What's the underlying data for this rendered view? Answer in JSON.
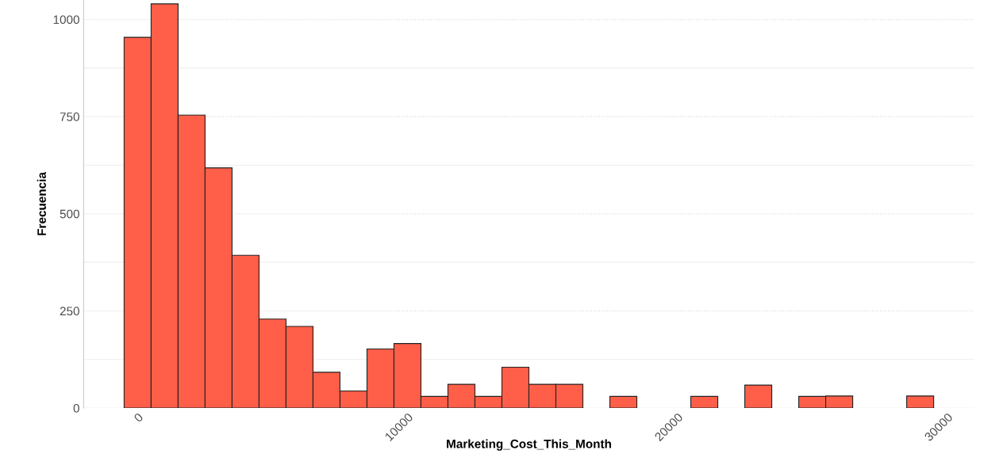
{
  "chart_data": {
    "type": "histogram",
    "xlabel": "Marketing_Cost_This_Month",
    "ylabel": "Frecuencia",
    "bins": [
      -500,
      500,
      1500,
      2500,
      3500,
      4500,
      5500,
      6500,
      7500,
      8500,
      9500,
      10500,
      11500,
      12500,
      13500,
      14500,
      15500,
      16500,
      17500,
      18500,
      19500,
      20500,
      21500,
      22500,
      23500,
      24500,
      25500,
      26500,
      27500,
      28500,
      29500
    ],
    "values": [
      954,
      1040,
      754,
      618,
      393,
      229,
      210,
      92,
      44,
      152,
      166,
      30,
      61,
      30,
      105,
      61,
      61,
      0,
      30,
      0,
      0,
      30,
      0,
      59,
      0,
      30,
      31,
      0,
      0,
      31
    ],
    "color": "#ff5f49",
    "xlim": [
      -2000,
      31000
    ],
    "xticks": [
      0,
      10000,
      20000,
      30000
    ],
    "ylim": [
      0,
      1050
    ],
    "yticks": [
      0,
      250,
      500,
      750,
      1000
    ],
    "grid": "y"
  }
}
